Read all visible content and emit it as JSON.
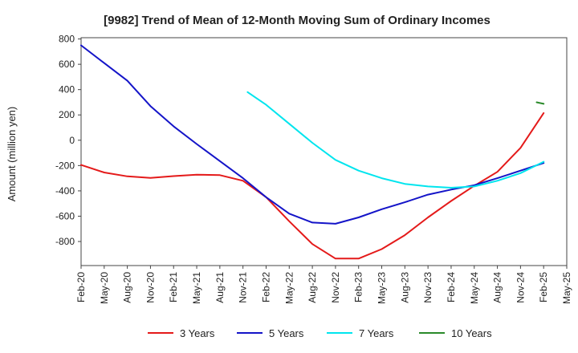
{
  "chart_data": {
    "type": "line",
    "title": "[9982]  Trend of Mean of 12-Month Moving Sum of Ordinary Incomes",
    "xlabel": "",
    "ylabel": "Amount (million yen)",
    "ylim": [
      -990,
      810
    ],
    "yticks": [
      -800,
      -600,
      -400,
      -200,
      0,
      200,
      400,
      600,
      800
    ],
    "x_tick_labels": [
      "Feb-20",
      "May-20",
      "Aug-20",
      "Nov-20",
      "Feb-21",
      "May-21",
      "Aug-21",
      "Nov-21",
      "Feb-22",
      "May-22",
      "Aug-22",
      "Nov-22",
      "Feb-23",
      "May-23",
      "Aug-23",
      "Nov-23",
      "Feb-24",
      "May-24",
      "Aug-24",
      "Nov-24",
      "Feb-25",
      "May-25"
    ],
    "grid": true,
    "legend_position": "bottom",
    "series": [
      {
        "name": "3 Years",
        "color": "#e41a1a",
        "points": [
          [
            0,
            -195
          ],
          [
            1,
            -255
          ],
          [
            2,
            -285
          ],
          [
            3,
            -298
          ],
          [
            4,
            -283
          ],
          [
            5,
            -272
          ],
          [
            6,
            -276
          ],
          [
            7,
            -320
          ],
          [
            8,
            -450
          ],
          [
            9,
            -640
          ],
          [
            10,
            -820
          ],
          [
            11,
            -935
          ],
          [
            12,
            -935
          ],
          [
            13,
            -860
          ],
          [
            14,
            -750
          ],
          [
            15,
            -610
          ],
          [
            16,
            -480
          ],
          [
            17,
            -360
          ],
          [
            18,
            -250
          ],
          [
            19,
            -60
          ],
          [
            20,
            215
          ]
        ]
      },
      {
        "name": "5 Years",
        "color": "#1414c8",
        "points": [
          [
            0,
            750
          ],
          [
            1,
            610
          ],
          [
            2,
            470
          ],
          [
            3,
            270
          ],
          [
            4,
            110
          ],
          [
            5,
            -30
          ],
          [
            6,
            -165
          ],
          [
            7,
            -300
          ],
          [
            8,
            -450
          ],
          [
            9,
            -580
          ],
          [
            10,
            -650
          ],
          [
            11,
            -660
          ],
          [
            12,
            -610
          ],
          [
            13,
            -545
          ],
          [
            14,
            -490
          ],
          [
            15,
            -430
          ],
          [
            16,
            -390
          ],
          [
            17,
            -355
          ],
          [
            18,
            -300
          ],
          [
            19,
            -240
          ],
          [
            20,
            -180
          ]
        ]
      },
      {
        "name": "7 Years",
        "color": "#00e5ee",
        "points": [
          [
            7.2,
            380
          ],
          [
            8,
            280
          ],
          [
            9,
            130
          ],
          [
            10,
            -20
          ],
          [
            11,
            -155
          ],
          [
            12,
            -240
          ],
          [
            13,
            -300
          ],
          [
            14,
            -345
          ],
          [
            15,
            -365
          ],
          [
            16,
            -375
          ],
          [
            17,
            -365
          ],
          [
            18,
            -320
          ],
          [
            19,
            -260
          ],
          [
            20,
            -170
          ]
        ]
      },
      {
        "name": "10 Years",
        "color": "#2a8a2a",
        "points": [
          [
            19.7,
            300
          ],
          [
            20,
            288
          ]
        ]
      }
    ]
  }
}
